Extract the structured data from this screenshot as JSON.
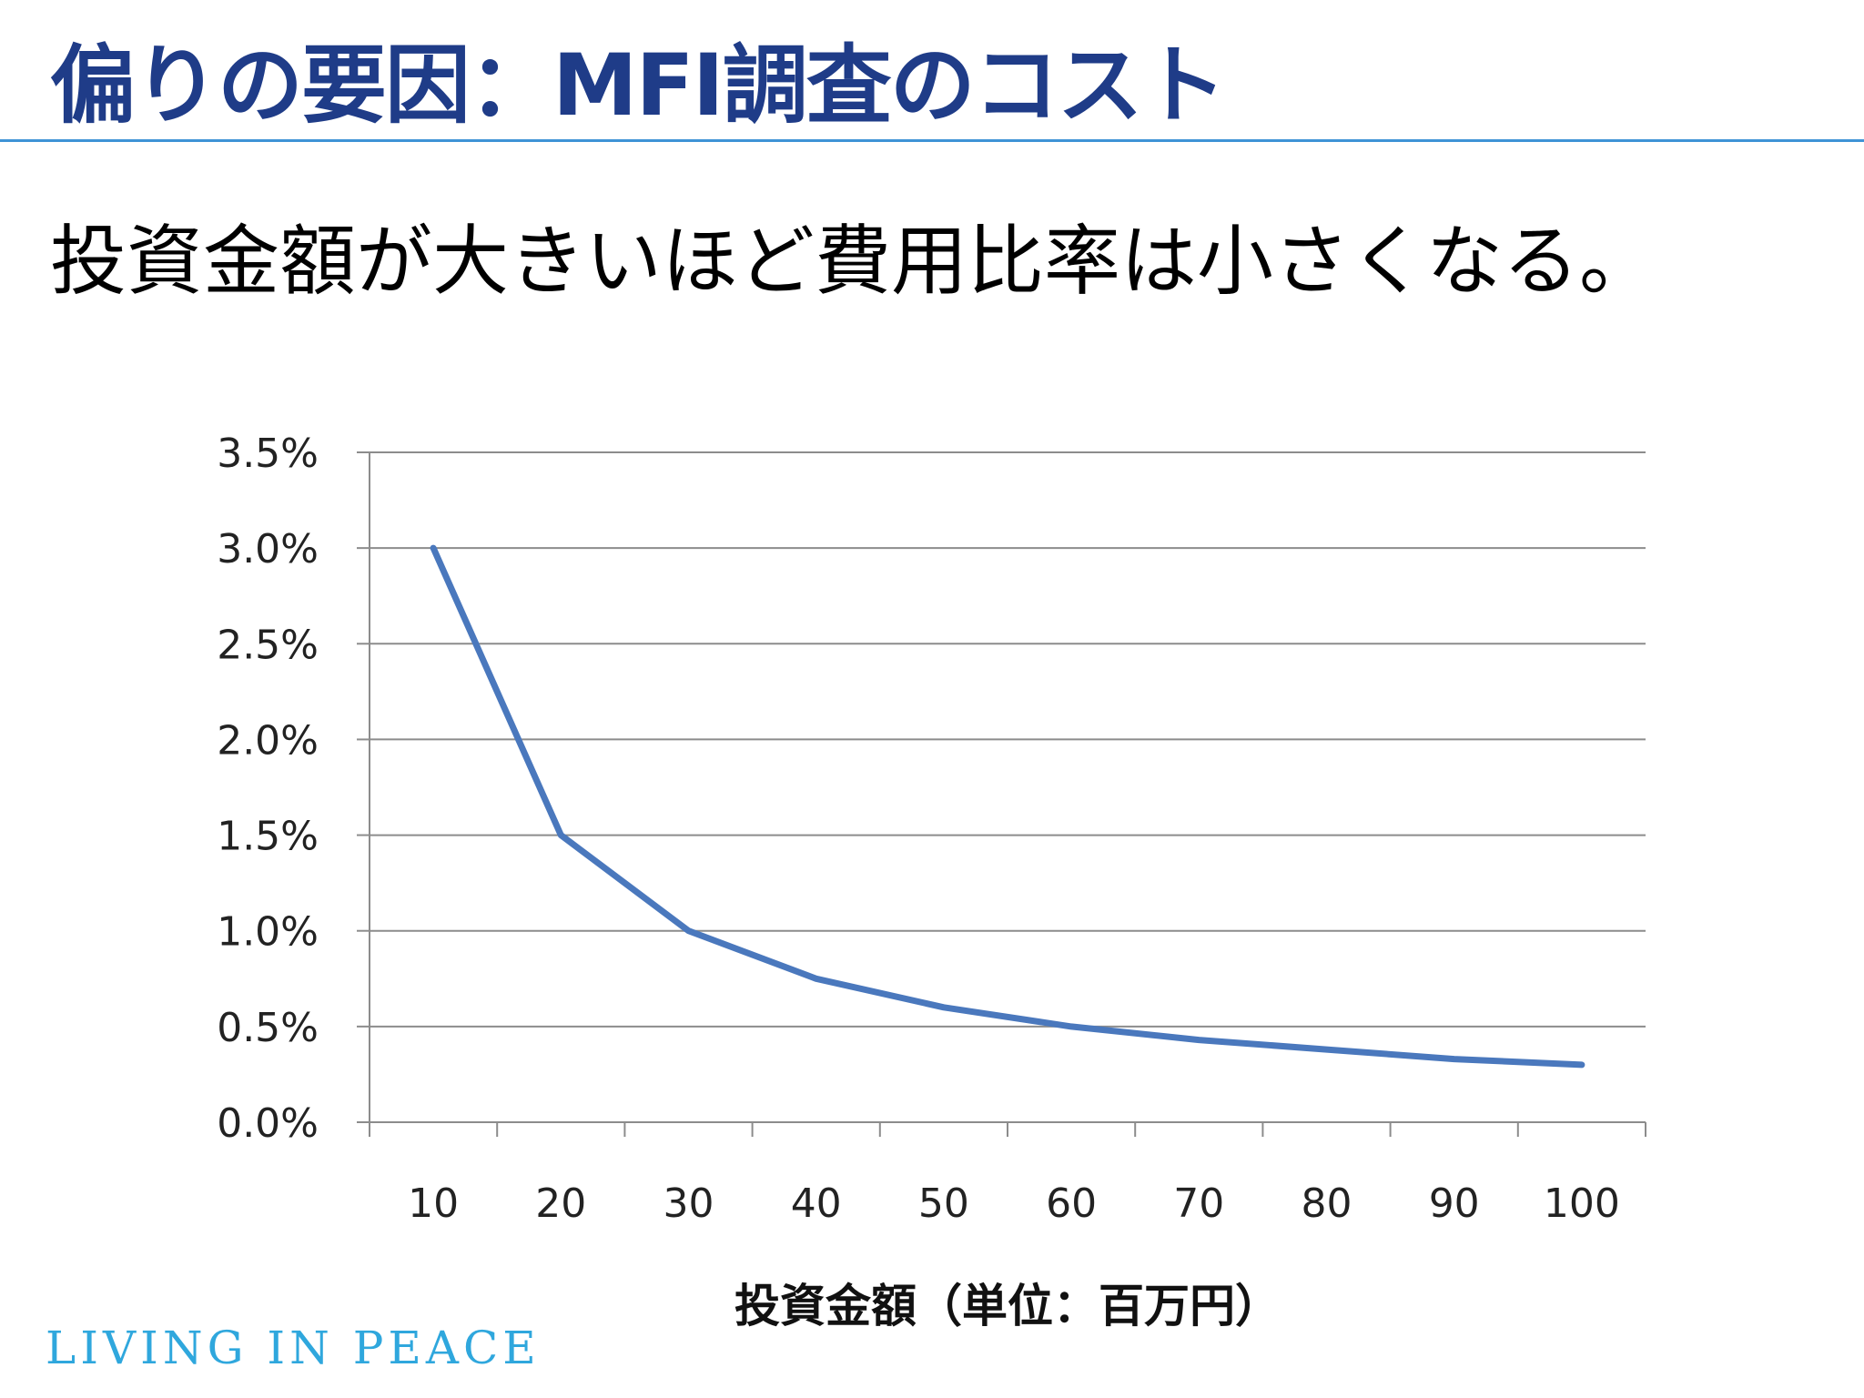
{
  "slide": {
    "title": "偏りの要因：MFI調査のコスト",
    "subtitle": "投資金額が大きいほど費用比率は小さくなる。"
  },
  "footer": {
    "logo_text": "LIVING IN PEACE"
  },
  "colors": {
    "title": "#1f3c88",
    "rule": "#3f93d6",
    "line": "#4a78bd",
    "logo": "#2fa7dd"
  },
  "chart_data": {
    "type": "line",
    "title": "",
    "xlabel": "投資金額（単位：百万円）",
    "ylabel": "",
    "categories": [
      "10",
      "20",
      "30",
      "40",
      "50",
      "60",
      "70",
      "80",
      "90",
      "100"
    ],
    "y_ticks": [
      "0.0%",
      "0.5%",
      "1.0%",
      "1.5%",
      "2.0%",
      "2.5%",
      "3.0%",
      "3.5%"
    ],
    "ylim": [
      0,
      3.5
    ],
    "y_unit": "%",
    "grid": true,
    "legend": "none",
    "series": [
      {
        "values": [
          3.0,
          1.5,
          1.0,
          0.75,
          0.6,
          0.5,
          0.43,
          0.38,
          0.33,
          0.3
        ]
      }
    ]
  }
}
